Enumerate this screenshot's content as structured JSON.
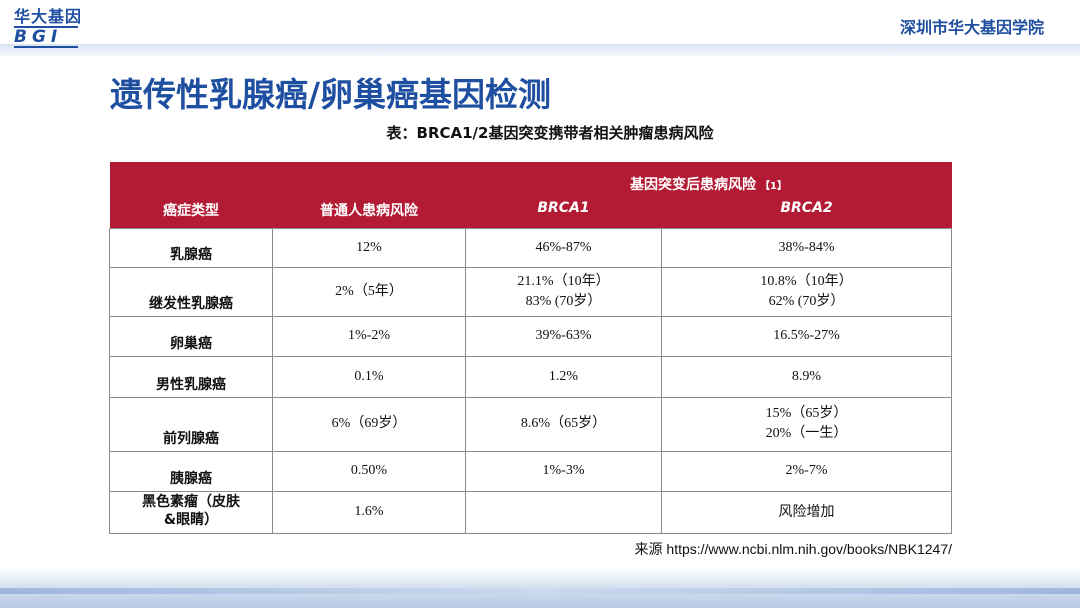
{
  "header": {
    "logo_cn": "华大基因",
    "logo_en": "BGI",
    "institute": "深圳市华大基因学院"
  },
  "title": "遗传性乳腺癌/卵巢癌基因检测",
  "table_caption": "表：BRCA1/2基因突变携带者相关肿瘤患病风险",
  "table": {
    "col_type": "癌症类型",
    "col_general": "普通人患病风险",
    "group_header": "基因突变后患病风险",
    "group_ref": "【1】",
    "col_brca1": "BRCA1",
    "col_brca2": "BRCA2",
    "rows": [
      {
        "type": "乳腺癌",
        "general": "12%",
        "brca1": "46%-87%",
        "brca2": "38%-84%"
      },
      {
        "type": "继发性乳腺癌",
        "general": "2%（5年）",
        "brca1": "21.1%（10年）\n83% (70岁）",
        "brca2": "10.8%（10年）\n62% (70岁）"
      },
      {
        "type": "卵巢癌",
        "general": "1%-2%",
        "brca1": "39%-63%",
        "brca2": "16.5%-27%"
      },
      {
        "type": "男性乳腺癌",
        "general": "0.1%",
        "brca1": "1.2%",
        "brca2": "8.9%"
      },
      {
        "type": "前列腺癌",
        "general": "6%（69岁）",
        "brca1": "8.6%（65岁）",
        "brca2": "15%（65岁）\n20%（一生）"
      },
      {
        "type": "胰腺癌",
        "general": "0.50%",
        "brca1": "1%-3%",
        "brca2": "2%-7%"
      },
      {
        "type": "黑色素瘤（皮肤\n&眼睛）",
        "general": "1.6%",
        "brca1": "",
        "brca2": "风险增加"
      }
    ]
  },
  "source": "来源 https://www.ncbi.nlm.nih.gov/books/NBK1247/",
  "colors": {
    "brand_blue": "#1f4fa0",
    "header_red": "#b31b34"
  }
}
